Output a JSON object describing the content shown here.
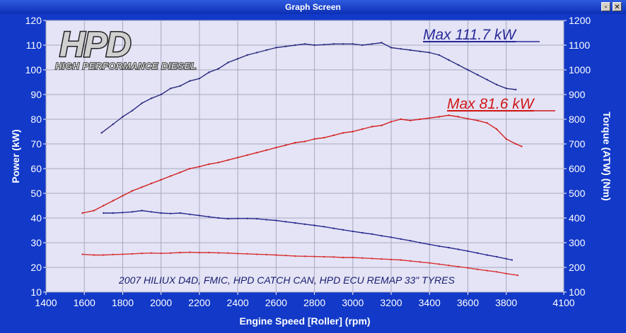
{
  "window": {
    "title": "Graph Screen",
    "restore_icon": "restore-icon",
    "close_icon": "close-icon"
  },
  "chart_data": {
    "type": "line",
    "title": "",
    "xlabel": "Engine Speed [Roller] (rpm)",
    "ylabel": "Power (kW)",
    "y2label": "Torque (ATW) (Nm)",
    "xlim": [
      1400,
      4100
    ],
    "ylim": [
      10,
      120
    ],
    "y2lim": [
      100,
      1200
    ],
    "xticks": [
      1400,
      1600,
      1800,
      2000,
      2200,
      2400,
      2600,
      2800,
      3000,
      3200,
      3400,
      3600,
      3800,
      4100
    ],
    "yticks": [
      10,
      20,
      30,
      40,
      50,
      60,
      70,
      80,
      90,
      100,
      110,
      120
    ],
    "y2ticks": [
      100,
      200,
      300,
      400,
      500,
      600,
      700,
      800,
      900,
      1000,
      1100,
      1200
    ],
    "grid": true,
    "background": "#e4e4f6",
    "logo": {
      "brand": "HPD",
      "tagline": "HIGH PERFORMANCE DIESEL"
    },
    "annotations": [
      {
        "text": "Max 111.7 kW",
        "color": "#2a2a9a"
      },
      {
        "text": "Max 81.6 kW",
        "color": "#d01818"
      },
      {
        "text": "2007 HILIUX D4D, FMIC, HPD CATCH CAN, HPD ECU REMAP 33\" TYRES",
        "color": "#1a1a70"
      }
    ],
    "series": [
      {
        "axis": "right",
        "color": "#2a2a80",
        "x": [
          1690,
          1750,
          1800,
          1850,
          1900,
          1950,
          2000,
          2050,
          2100,
          2150,
          2200,
          2250,
          2300,
          2350,
          2400,
          2450,
          2500,
          2550,
          2600,
          2650,
          2700,
          2750,
          2800,
          2850,
          2900,
          2950,
          3000,
          3050,
          3100,
          3150,
          3200,
          3250,
          3300,
          3350,
          3400,
          3450,
          3500,
          3550,
          3600,
          3650,
          3700,
          3750,
          3800,
          3850
        ],
        "y": [
          745,
          780,
          810,
          835,
          865,
          885,
          900,
          925,
          935,
          955,
          965,
          990,
          1005,
          1030,
          1045,
          1060,
          1070,
          1080,
          1090,
          1095,
          1100,
          1105,
          1100,
          1102,
          1105,
          1105,
          1105,
          1100,
          1105,
          1110,
          1090,
          1085,
          1080,
          1075,
          1070,
          1060,
          1040,
          1020,
          1000,
          980,
          960,
          940,
          925,
          920
        ]
      },
      {
        "axis": "left",
        "color": "#d42020",
        "x": [
          1590,
          1650,
          1700,
          1750,
          1800,
          1850,
          1900,
          1950,
          2000,
          2050,
          2100,
          2150,
          2200,
          2250,
          2300,
          2350,
          2400,
          2450,
          2500,
          2550,
          2600,
          2650,
          2700,
          2750,
          2800,
          2850,
          2900,
          2950,
          3000,
          3050,
          3100,
          3150,
          3200,
          3250,
          3300,
          3350,
          3400,
          3450,
          3500,
          3550,
          3600,
          3650,
          3700,
          3750,
          3800,
          3850,
          3880
        ],
        "y": [
          42,
          43,
          45,
          47,
          49,
          51,
          52.5,
          54,
          55.5,
          57,
          58.5,
          60,
          60.8,
          61.8,
          62.5,
          63.5,
          64.5,
          65.5,
          66.5,
          67.5,
          68.5,
          69.5,
          70.5,
          71,
          72,
          72.5,
          73.5,
          74.5,
          75,
          76,
          77,
          77.5,
          79,
          80,
          79.5,
          80,
          80.5,
          81,
          81.6,
          81,
          80.2,
          79.5,
          78.5,
          76,
          72,
          70,
          69
        ]
      },
      {
        "axis": "right",
        "color": "#2a2a90",
        "x": [
          1700,
          1750,
          1800,
          1850,
          1900,
          1950,
          2000,
          2050,
          2100,
          2150,
          2200,
          2250,
          2300,
          2350,
          2400,
          2450,
          2500,
          2550,
          2600,
          2650,
          2700,
          2750,
          2800,
          2850,
          2900,
          2950,
          3000,
          3050,
          3100,
          3150,
          3200,
          3250,
          3300,
          3350,
          3400,
          3450,
          3500,
          3550,
          3600,
          3650,
          3700,
          3750,
          3800,
          3830
        ],
        "y": [
          420,
          420,
          422,
          425,
          430,
          425,
          420,
          418,
          420,
          415,
          410,
          405,
          400,
          397,
          398,
          398,
          397,
          393,
          390,
          385,
          380,
          375,
          370,
          365,
          358,
          352,
          346,
          340,
          335,
          328,
          322,
          315,
          308,
          300,
          293,
          286,
          280,
          273,
          266,
          258,
          250,
          243,
          235,
          230
        ]
      },
      {
        "axis": "left",
        "color": "#d83030",
        "x": [
          1590,
          1650,
          1700,
          1750,
          1800,
          1850,
          1900,
          1950,
          2000,
          2050,
          2100,
          2150,
          2200,
          2250,
          2300,
          2350,
          2400,
          2450,
          2500,
          2550,
          2600,
          2650,
          2700,
          2750,
          2800,
          2850,
          2900,
          2950,
          3000,
          3050,
          3100,
          3150,
          3200,
          3250,
          3300,
          3350,
          3400,
          3450,
          3500,
          3550,
          3600,
          3650,
          3700,
          3750,
          3800,
          3860
        ],
        "y": [
          25.3,
          25,
          25,
          25.2,
          25.3,
          25.5,
          25.7,
          25.8,
          25.7,
          25.8,
          26,
          26.1,
          26,
          26,
          25.9,
          25.8,
          25.6,
          25.5,
          25.3,
          25.2,
          25,
          24.8,
          24.6,
          24.5,
          24.4,
          24.3,
          24.2,
          24,
          24,
          23.8,
          23.6,
          23.4,
          23.2,
          23,
          22.6,
          22.2,
          21.8,
          21.3,
          20.8,
          20.3,
          19.8,
          19.2,
          18.7,
          18.2,
          17.5,
          16.8
        ]
      }
    ]
  }
}
